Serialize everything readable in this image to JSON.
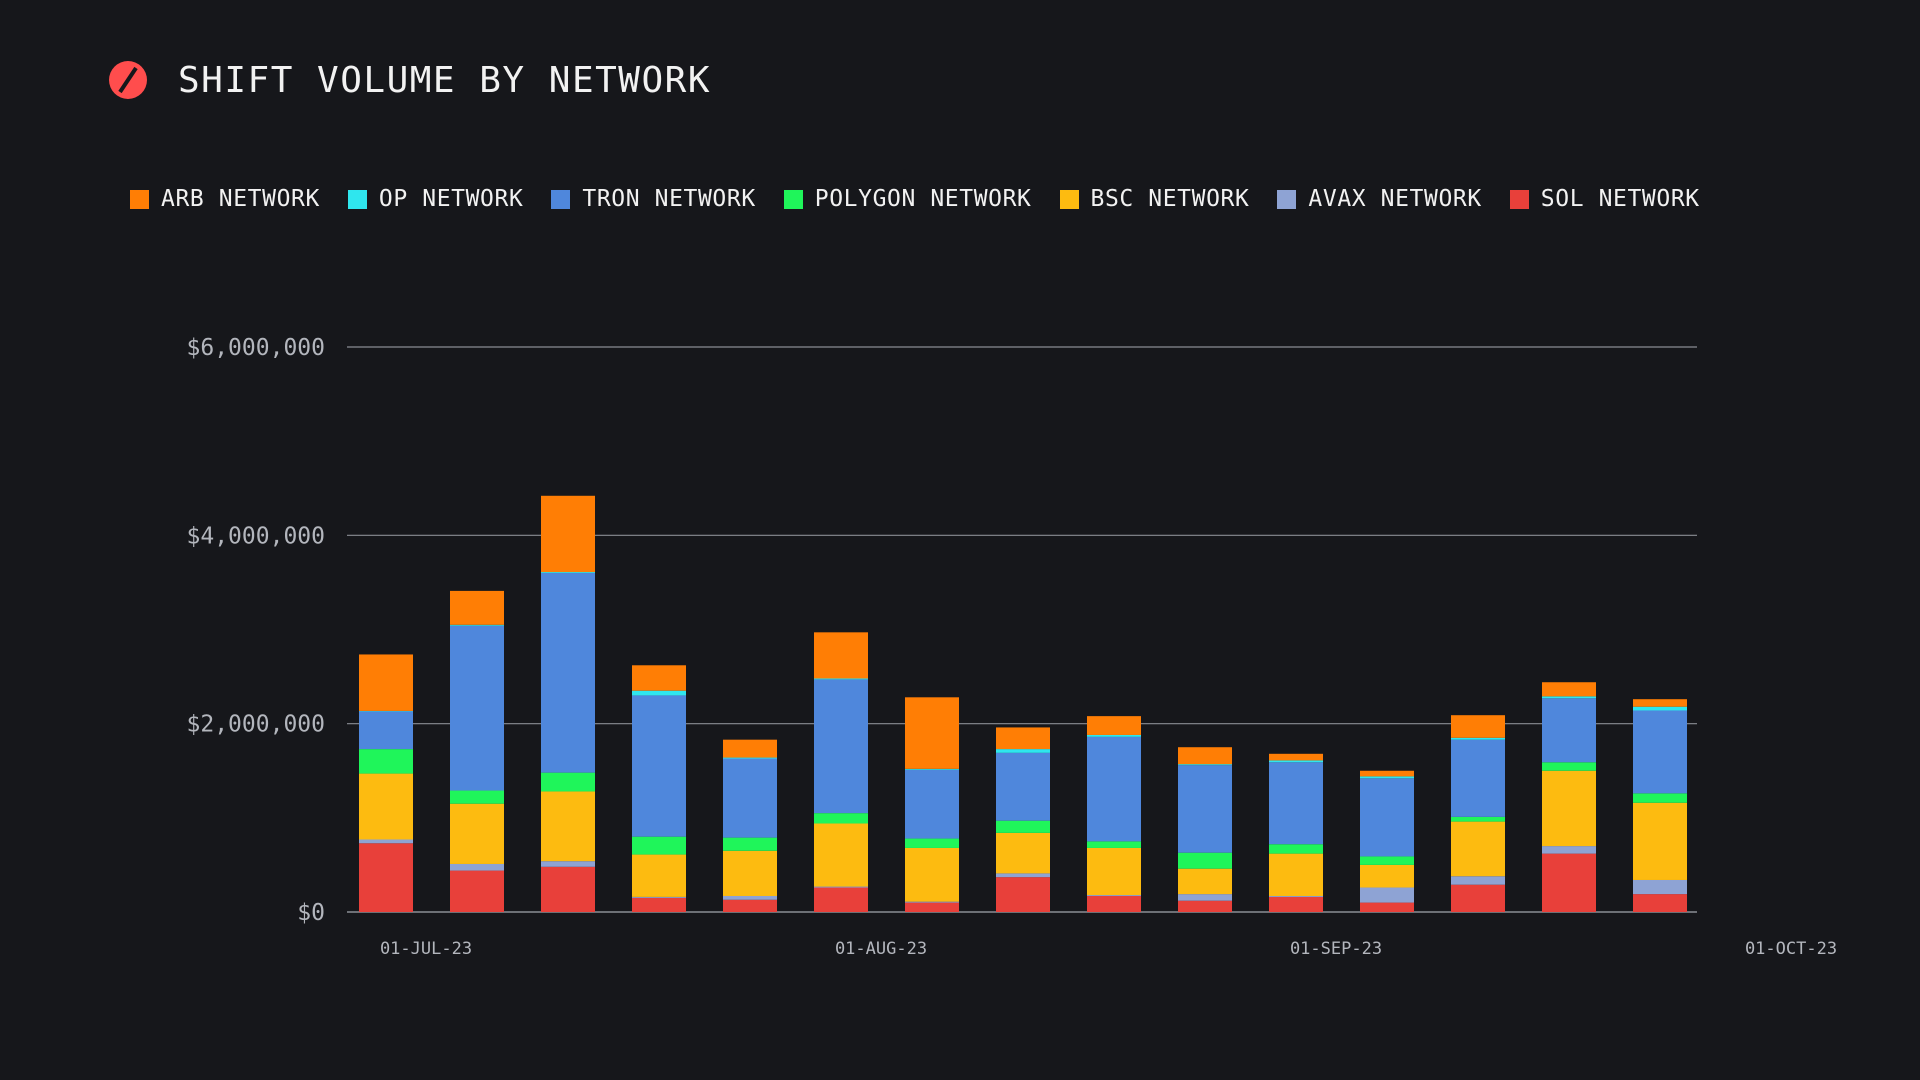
{
  "header": {
    "title": "SHIFT VOLUME BY NETWORK",
    "logo_icon": "shapeshift-slash-icon",
    "logo_color": "#ff4d4d"
  },
  "colors": {
    "background": "#16171b",
    "grid": "#8a8d94",
    "axis_text": "#b3b6bd",
    "text": "#f2f2f2"
  },
  "chart_data": {
    "type": "bar",
    "stacked": true,
    "title": "SHIFT VOLUME BY NETWORK",
    "categories": [
      "01-JUL-23",
      "",
      "",
      "",
      "",
      "01-AUG-23",
      "",
      "",
      "",
      "",
      "01-SEP-23",
      "",
      "",
      "",
      "",
      "01-OCT-23"
    ],
    "y_ticks": [
      {
        "value": 0,
        "label": "$0"
      },
      {
        "value": 2000000,
        "label": "$2,000,000"
      },
      {
        "value": 4000000,
        "label": "$4,000,000"
      },
      {
        "value": 6000000,
        "label": "$6,000,000"
      }
    ],
    "ylim": [
      0,
      6000000
    ],
    "grid": true,
    "legend_position": "top",
    "series": [
      {
        "name": "SOL NETWORK",
        "color": "#e8403a",
        "values": [
          730000,
          440000,
          480000,
          150000,
          130000,
          260000,
          100000,
          370000,
          170000,
          120000,
          160000,
          100000,
          290000,
          620000,
          190000,
          0
        ]
      },
      {
        "name": "AVAX NETWORK",
        "color": "#8ea3d4",
        "values": [
          40000,
          70000,
          60000,
          10000,
          40000,
          10000,
          10000,
          40000,
          10000,
          70000,
          10000,
          160000,
          90000,
          80000,
          150000,
          0
        ]
      },
      {
        "name": "BSC NETWORK",
        "color": "#fdbb10",
        "values": [
          700000,
          640000,
          740000,
          450000,
          480000,
          670000,
          570000,
          430000,
          500000,
          270000,
          450000,
          240000,
          580000,
          800000,
          820000,
          0
        ]
      },
      {
        "name": "POLYGON NETWORK",
        "color": "#1ff55a",
        "values": [
          260000,
          140000,
          200000,
          190000,
          140000,
          110000,
          100000,
          130000,
          70000,
          170000,
          100000,
          90000,
          50000,
          90000,
          100000,
          0
        ]
      },
      {
        "name": "TRON NETWORK",
        "color": "#4f87dc",
        "values": [
          400000,
          1750000,
          2120000,
          1500000,
          840000,
          1420000,
          730000,
          720000,
          1110000,
          930000,
          870000,
          830000,
          820000,
          680000,
          880000,
          0
        ]
      },
      {
        "name": "OP NETWORK",
        "color": "#2fe6ee",
        "values": [
          5000,
          10000,
          10000,
          50000,
          10000,
          10000,
          10000,
          40000,
          20000,
          10000,
          20000,
          20000,
          20000,
          20000,
          40000,
          0
        ]
      },
      {
        "name": "ARB NETWORK",
        "color": "#ff7e05",
        "values": [
          600000,
          360000,
          810000,
          270000,
          190000,
          490000,
          760000,
          230000,
          200000,
          180000,
          70000,
          60000,
          240000,
          150000,
          80000,
          0
        ]
      }
    ]
  },
  "legend": [
    {
      "name": "ARB NETWORK",
      "color": "#ff7e05"
    },
    {
      "name": "OP NETWORK",
      "color": "#2fe6ee"
    },
    {
      "name": "TRON NETWORK",
      "color": "#4f87dc"
    },
    {
      "name": "POLYGON NETWORK",
      "color": "#1ff55a"
    },
    {
      "name": "BSC NETWORK",
      "color": "#fdbb10"
    },
    {
      "name": "AVAX NETWORK",
      "color": "#8ea3d4"
    },
    {
      "name": "SOL NETWORK",
      "color": "#e8403a"
    }
  ]
}
